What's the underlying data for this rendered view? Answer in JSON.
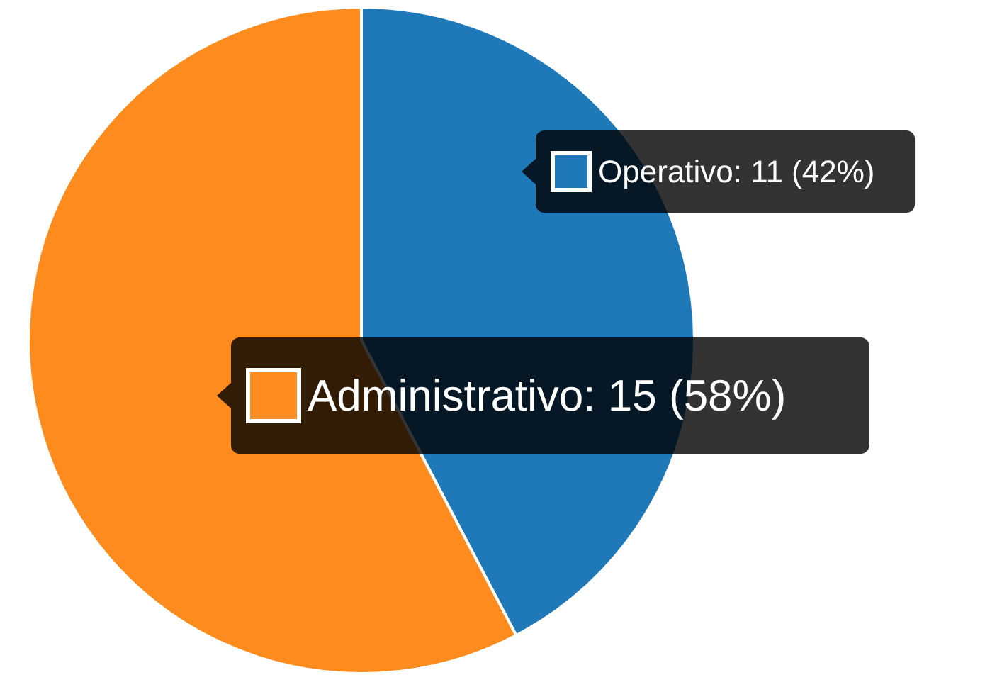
{
  "chart_data": {
    "type": "pie",
    "categories": [
      "Operativo",
      "Administrativo"
    ],
    "values": [
      11,
      15
    ],
    "colors": [
      "#1f78b8",
      "#fd8b1d"
    ],
    "value_labels": [
      "11 (42%)",
      "15 (58%)"
    ],
    "legend": "right"
  }
}
